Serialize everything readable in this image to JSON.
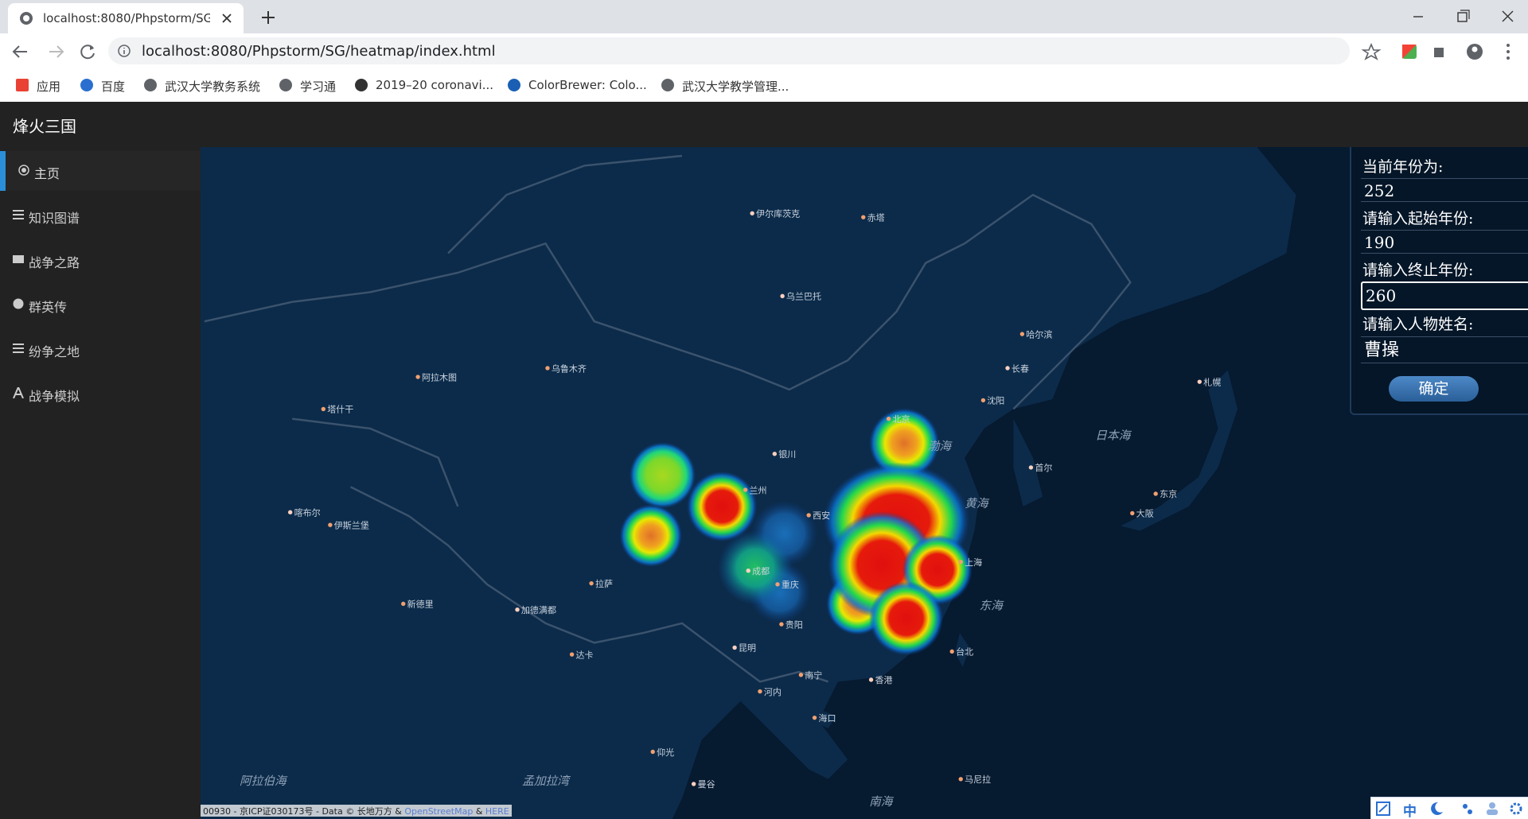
{
  "browser": {
    "tab_title": "localhost:8080/Phpstorm/SG/h",
    "url": "localhost:8080/Phpstorm/SG/heatmap/index.html",
    "bookmarks": [
      "应用",
      "百度",
      "武汉大学教务系统",
      "学习通",
      "2019–20 coronavi...",
      "ColorBrewer: Colo...",
      "武汉大学教学管理..."
    ]
  },
  "app": {
    "brand": "烽火三国",
    "nav": [
      "主页",
      "知识图谱",
      "战争之路",
      "群英传",
      "纷争之地",
      "战争模拟"
    ]
  },
  "map": {
    "seas": [
      "渤海",
      "黄海",
      "东海",
      "日本海",
      "南海",
      "孟加拉湾",
      "阿拉伯海"
    ],
    "cities": [
      "乌兰巴托",
      "乌鲁木齐",
      "阿拉木图",
      "伊尔库茨克",
      "赤塔",
      "哈尔滨",
      "长春",
      "沈阳",
      "北京",
      "银川",
      "兰州",
      "西安",
      "成都",
      "重庆",
      "贵阳",
      "昆明",
      "拉萨",
      "南宁",
      "香港",
      "台北",
      "上海",
      "首尔",
      "东京",
      "大阪",
      "札幌",
      "河内",
      "海口",
      "曼谷",
      "仰光",
      "达卡",
      "加德满都",
      "新德里",
      "伊斯兰堡",
      "喀布尔",
      "塔什干",
      "马尼拉"
    ],
    "attribution": {
      "text": "00930 - 京ICP证030173号 - Data © 长地万方 &",
      "osm": "OpenStreetMap",
      "sep": "&",
      "here": "HERE"
    }
  },
  "form": {
    "current_label": "当前年份为:",
    "current_value": "252",
    "start_label": "请输入起始年份:",
    "start_value": "190",
    "end_label": "请输入终止年份:",
    "end_value": "260",
    "name_label": "请输入人物姓名:",
    "name_value": "曹操",
    "submit": "确定"
  },
  "ime": {
    "mode": "中"
  }
}
